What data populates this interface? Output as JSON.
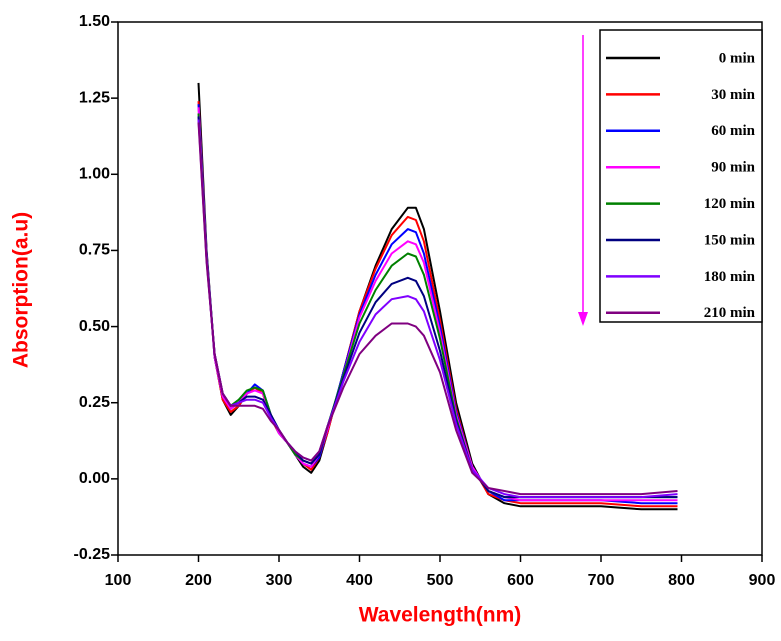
{
  "chart_data": {
    "type": "line",
    "x_label": "Wavelength(nm)",
    "y_label": "Absorption(a.u)",
    "x": [
      200,
      210,
      220,
      230,
      240,
      250,
      260,
      270,
      280,
      290,
      300,
      310,
      320,
      330,
      340,
      350,
      360,
      380,
      400,
      420,
      440,
      460,
      470,
      480,
      500,
      520,
      540,
      560,
      580,
      600,
      650,
      700,
      750,
      795
    ],
    "series": [
      {
        "name": "0 min",
        "color": "#000000",
        "values": [
          1.3,
          0.75,
          0.4,
          0.26,
          0.21,
          0.24,
          0.28,
          0.3,
          0.28,
          0.2,
          0.15,
          0.12,
          0.08,
          0.04,
          0.02,
          0.06,
          0.15,
          0.35,
          0.55,
          0.7,
          0.82,
          0.89,
          0.89,
          0.82,
          0.55,
          0.25,
          0.05,
          -0.05,
          -0.08,
          -0.09,
          -0.09,
          -0.09,
          -0.1,
          -0.1
        ]
      },
      {
        "name": "30 min",
        "color": "#ff0000",
        "values": [
          1.24,
          0.74,
          0.4,
          0.26,
          0.22,
          0.24,
          0.28,
          0.3,
          0.28,
          0.2,
          0.15,
          0.12,
          0.08,
          0.05,
          0.03,
          0.07,
          0.15,
          0.35,
          0.55,
          0.69,
          0.8,
          0.86,
          0.85,
          0.78,
          0.52,
          0.23,
          0.04,
          -0.05,
          -0.07,
          -0.08,
          -0.08,
          -0.08,
          -0.09,
          -0.09
        ]
      },
      {
        "name": "60 min",
        "color": "#0000ff",
        "values": [
          1.23,
          0.74,
          0.4,
          0.27,
          0.23,
          0.25,
          0.28,
          0.31,
          0.29,
          0.21,
          0.15,
          0.12,
          0.08,
          0.05,
          0.04,
          0.07,
          0.16,
          0.35,
          0.54,
          0.67,
          0.77,
          0.82,
          0.81,
          0.74,
          0.5,
          0.22,
          0.04,
          -0.04,
          -0.07,
          -0.07,
          -0.07,
          -0.07,
          -0.08,
          -0.08
        ]
      },
      {
        "name": "90 min",
        "color": "#ff00ff",
        "values": [
          1.22,
          0.73,
          0.4,
          0.27,
          0.23,
          0.25,
          0.28,
          0.29,
          0.28,
          0.21,
          0.15,
          0.12,
          0.08,
          0.05,
          0.04,
          0.08,
          0.16,
          0.34,
          0.53,
          0.65,
          0.74,
          0.78,
          0.77,
          0.71,
          0.48,
          0.21,
          0.04,
          -0.04,
          -0.06,
          -0.07,
          -0.07,
          -0.07,
          -0.07,
          -0.07
        ]
      },
      {
        "name": "120 min",
        "color": "#008000",
        "values": [
          1.2,
          0.73,
          0.41,
          0.28,
          0.24,
          0.26,
          0.29,
          0.3,
          0.29,
          0.21,
          0.16,
          0.12,
          0.08,
          0.06,
          0.05,
          0.08,
          0.17,
          0.34,
          0.51,
          0.62,
          0.7,
          0.74,
          0.73,
          0.67,
          0.46,
          0.2,
          0.03,
          -0.04,
          -0.06,
          -0.06,
          -0.06,
          -0.06,
          -0.06,
          -0.06
        ]
      },
      {
        "name": "150 min",
        "color": "#000080",
        "values": [
          1.19,
          0.72,
          0.41,
          0.28,
          0.24,
          0.25,
          0.27,
          0.27,
          0.26,
          0.21,
          0.16,
          0.12,
          0.09,
          0.06,
          0.05,
          0.08,
          0.17,
          0.33,
          0.48,
          0.58,
          0.64,
          0.66,
          0.65,
          0.6,
          0.42,
          0.19,
          0.03,
          -0.04,
          -0.06,
          -0.06,
          -0.06,
          -0.06,
          -0.06,
          -0.06
        ]
      },
      {
        "name": "180 min",
        "color": "#7f00ff",
        "values": [
          1.18,
          0.72,
          0.41,
          0.28,
          0.24,
          0.25,
          0.26,
          0.26,
          0.25,
          0.2,
          0.16,
          0.12,
          0.09,
          0.07,
          0.06,
          0.09,
          0.17,
          0.32,
          0.45,
          0.54,
          0.59,
          0.6,
          0.59,
          0.55,
          0.39,
          0.18,
          0.03,
          -0.03,
          -0.05,
          -0.06,
          -0.06,
          -0.06,
          -0.06,
          -0.05
        ]
      },
      {
        "name": "210 min",
        "color": "#800080",
        "values": [
          1.17,
          0.71,
          0.41,
          0.28,
          0.24,
          0.24,
          0.24,
          0.24,
          0.23,
          0.19,
          0.16,
          0.12,
          0.09,
          0.07,
          0.06,
          0.09,
          0.17,
          0.3,
          0.41,
          0.47,
          0.51,
          0.51,
          0.5,
          0.47,
          0.35,
          0.16,
          0.02,
          -0.03,
          -0.04,
          -0.05,
          -0.05,
          -0.05,
          -0.05,
          -0.04
        ]
      }
    ],
    "xlim": [
      100,
      900
    ],
    "xticks": [
      100,
      200,
      300,
      400,
      500,
      600,
      700,
      800,
      900
    ],
    "ylim": [
      -0.25,
      1.5
    ],
    "yticks": [
      {
        "value": -0.25,
        "label": "-0.25"
      },
      {
        "value": 0,
        "label": "0.00"
      },
      {
        "value": 0.25,
        "label": "0.25"
      },
      {
        "value": 0.5,
        "label": "0.50"
      },
      {
        "value": 0.75,
        "label": "0.75"
      },
      {
        "value": 1,
        "label": "1.00"
      },
      {
        "value": 1.25,
        "label": "1.25"
      },
      {
        "value": 1.5,
        "label": "1.50"
      }
    ],
    "legend": "upper-right",
    "grid": false
  }
}
